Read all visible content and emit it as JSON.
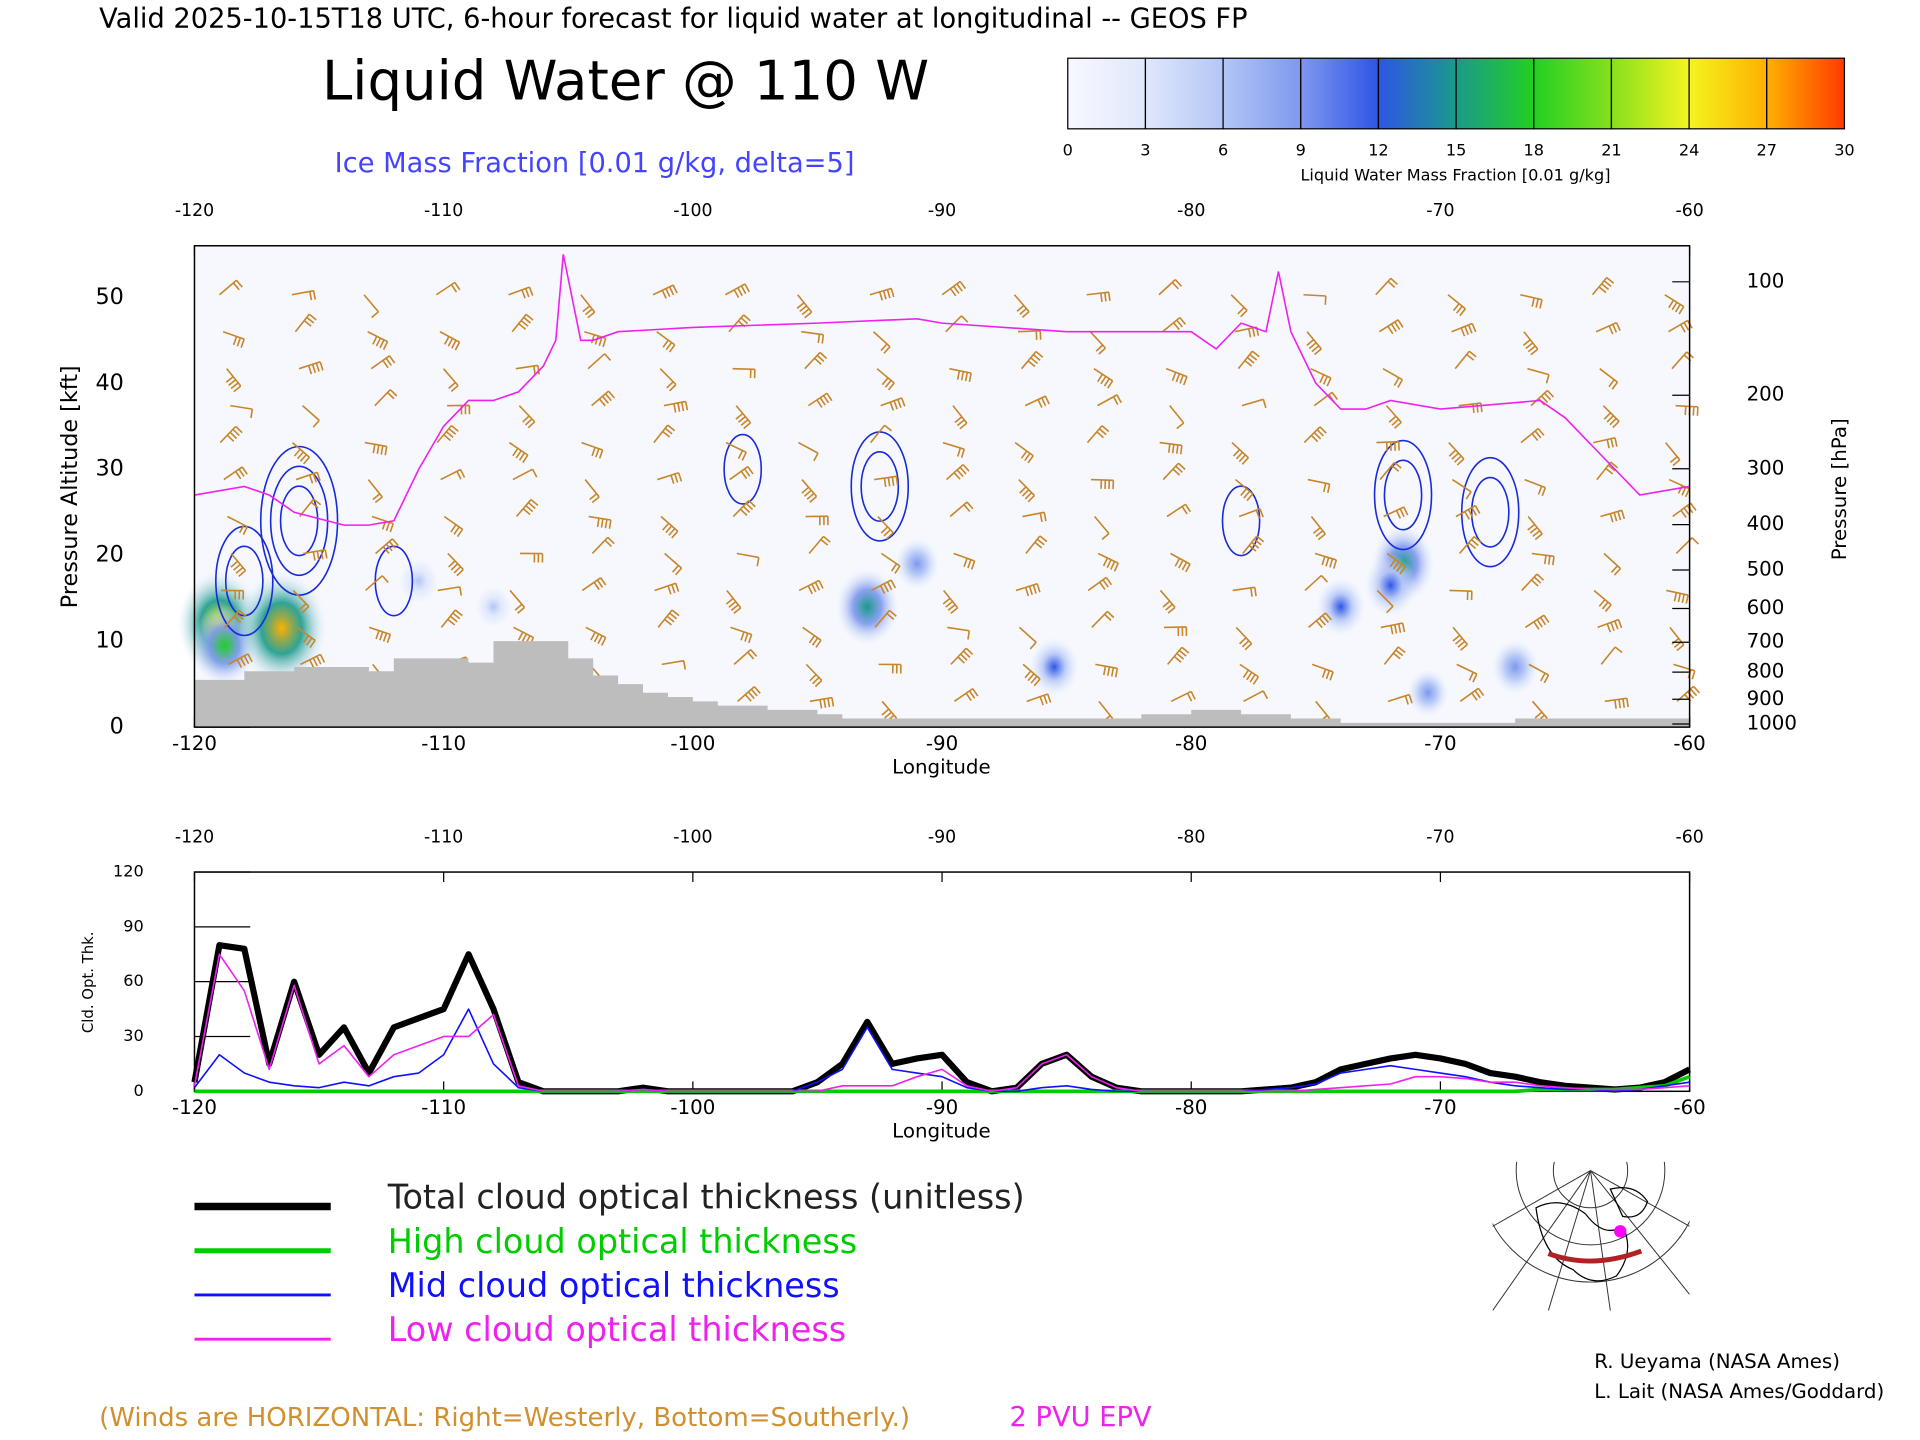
{
  "header": {
    "valid": "Valid 2025-10-15T18 UTC, 6-hour forecast for liquid water at longitudinal -- GEOS FP",
    "title": "Liquid Water @ 110 W",
    "subtitle": "Ice Mass Fraction [0.01 g/kg, delta=5]"
  },
  "colorbar": {
    "ticks": [
      0,
      3,
      6,
      9,
      12,
      15,
      18,
      21,
      24,
      27,
      30
    ],
    "label": "Liquid Water Mass Fraction [0.01 g/kg]",
    "colors": [
      "#f8f9ff",
      "#dfe7fb",
      "#b3c6f6",
      "#7e98ee",
      "#2e55e6",
      "#1a9a8a",
      "#22d022",
      "#86e01e",
      "#f4f420",
      "#ffb000",
      "#ff3a00"
    ]
  },
  "chart_data": [
    {
      "type": "cross-section",
      "xlabel": "Longitude",
      "ylabel": "Pressure Altitude [kft]",
      "y2label": "Pressure [hPa]",
      "xlim": [
        -120,
        -60
      ],
      "xticks": [
        -120,
        -110,
        -100,
        -90,
        -80,
        -70,
        -60
      ],
      "ylim": [
        0,
        56
      ],
      "yticks": [
        0,
        10,
        20,
        30,
        40,
        50
      ],
      "y2ticks": [
        100,
        200,
        300,
        400,
        500,
        600,
        700,
        800,
        900,
        1000
      ],
      "liquid_water": {
        "x": [
          -119,
          -118.8,
          -116.5,
          -93,
          -71.5,
          -72,
          -74,
          -85.5,
          -91,
          -67,
          -70.5,
          -111,
          -108
        ],
        "y": [
          12,
          9.5,
          11.5,
          14,
          19,
          16.5,
          14,
          7,
          19,
          7,
          4,
          17,
          14
        ],
        "values": [
          22,
          15,
          24,
          14,
          14,
          10,
          9,
          9,
          7,
          8,
          6,
          5,
          4
        ]
      },
      "ice_mass": {
        "x": [
          -115.8,
          -118,
          -112,
          -98,
          -92.5,
          -71.5,
          -68,
          -78
        ],
        "y": [
          24,
          17,
          17,
          30,
          28,
          27,
          25,
          24
        ],
        "values": [
          15,
          10,
          5,
          5,
          10,
          10,
          10,
          5
        ],
        "color": "#1a2bd8"
      },
      "epv": {
        "name": "2 PVU EPV",
        "color": "#ee22ee",
        "x": [
          -120,
          -118,
          -117,
          -116,
          -114,
          -113,
          -112,
          -111,
          -110,
          -109,
          -108,
          -107,
          -106,
          -105.5,
          -105.2,
          -104.5,
          -104,
          -103,
          -100,
          -95,
          -91,
          -90,
          -85,
          -80,
          -79,
          -78,
          -77,
          -76.5,
          -76,
          -75,
          -74,
          -73,
          -72,
          -70,
          -66,
          -65,
          -63,
          -62,
          -60
        ],
        "values": [
          27,
          28,
          27,
          25,
          23.5,
          23.5,
          24,
          30,
          35,
          38,
          38,
          39,
          42,
          45,
          55,
          45,
          45,
          46,
          46.5,
          47,
          47.5,
          47,
          46,
          46,
          44,
          47,
          46,
          53,
          46,
          40,
          37,
          37,
          38,
          37,
          38,
          36,
          30,
          27,
          28
        ]
      },
      "terrain": {
        "color": "#bdbdbd",
        "x": [
          -120,
          -118,
          -116,
          -113,
          -112,
          -109,
          -108,
          -106,
          -105,
          -104,
          -103,
          -102,
          -101,
          -100,
          -99,
          -97,
          -95,
          -94,
          -90,
          -82,
          -80,
          -78,
          -76,
          -74,
          -71,
          -67,
          -60
        ],
        "values": [
          5.5,
          6.5,
          7,
          6.5,
          8,
          7.5,
          10,
          10,
          8,
          6,
          5,
          4,
          3.5,
          3,
          2.5,
          2,
          1.5,
          1,
          1,
          1.5,
          2,
          1.5,
          1,
          0.5,
          0.5,
          1,
          1
        ]
      },
      "wind_note": "(Winds are HORIZONTAL: Right=Westerly, Bottom=Southerly.)",
      "wind_color": "#c8862a"
    },
    {
      "type": "line",
      "xlabel": "Longitude",
      "ylabel": "Cld. Opt. Thk.",
      "xlim": [
        -120,
        -60
      ],
      "xticks": [
        -120,
        -110,
        -100,
        -90,
        -80,
        -70,
        -60
      ],
      "ylim": [
        0,
        120
      ],
      "yticks": [
        0,
        30,
        60,
        90,
        120
      ],
      "x": [
        -120,
        -119,
        -118,
        -117,
        -116,
        -115,
        -114,
        -113,
        -112,
        -111,
        -110,
        -109,
        -108,
        -107,
        -106,
        -105,
        -104,
        -103,
        -102,
        -101,
        -100,
        -99,
        -98,
        -97,
        -96,
        -95,
        -94,
        -93,
        -92,
        -91,
        -90,
        -89,
        -88,
        -87,
        -86,
        -85,
        -84,
        -83,
        -82,
        -81,
        -80,
        -79,
        -78,
        -77,
        -76,
        -75,
        -74,
        -73,
        -72,
        -71,
        -70,
        -69,
        -68,
        -67,
        -66,
        -65,
        -64,
        -63,
        -62,
        -61,
        -60
      ],
      "series": [
        {
          "name": "Total cloud optical thickness (unitless)",
          "color": "#000000",
          "width": 5,
          "values": [
            5,
            80,
            78,
            15,
            60,
            20,
            35,
            10,
            35,
            40,
            45,
            75,
            45,
            5,
            0,
            0,
            0,
            0,
            2,
            0,
            0,
            0,
            0,
            0,
            0,
            5,
            15,
            38,
            15,
            18,
            20,
            5,
            0,
            2,
            15,
            20,
            8,
            2,
            0,
            0,
            0,
            0,
            0,
            1,
            2,
            5,
            12,
            15,
            18,
            20,
            18,
            15,
            10,
            8,
            5,
            3,
            2,
            1,
            2,
            5,
            12
          ]
        },
        {
          "name": "High cloud optical thickness",
          "color": "#00cc00",
          "width": 3,
          "values": [
            0,
            0,
            0,
            0,
            0,
            0,
            0,
            0,
            0,
            0,
            0,
            0,
            0,
            0,
            0,
            0,
            0,
            0,
            0,
            0,
            0,
            0,
            0,
            0,
            0,
            0,
            0,
            0,
            0,
            0,
            0,
            0,
            0,
            0,
            0,
            0,
            0,
            0,
            0,
            0,
            0,
            0,
            0,
            0,
            0,
            0,
            0,
            0,
            0,
            0,
            0,
            0,
            0,
            0,
            1,
            1,
            1,
            1,
            2,
            3,
            8
          ]
        },
        {
          "name": "Mid cloud optical thickness",
          "color": "#1010ff",
          "width": 1.3,
          "values": [
            2,
            20,
            10,
            5,
            3,
            2,
            5,
            3,
            8,
            10,
            20,
            45,
            15,
            2,
            0,
            0,
            0,
            0,
            1,
            0,
            0,
            0,
            0,
            0,
            0,
            5,
            12,
            35,
            12,
            10,
            8,
            2,
            0,
            0,
            2,
            3,
            1,
            0,
            0,
            0,
            0,
            0,
            0,
            1,
            2,
            4,
            10,
            12,
            14,
            12,
            10,
            8,
            5,
            3,
            2,
            1,
            1,
            0,
            1,
            3,
            5
          ]
        },
        {
          "name": "Low cloud optical thickness",
          "color": "#ee22ee",
          "width": 1.3,
          "values": [
            3,
            75,
            55,
            12,
            58,
            15,
            25,
            8,
            20,
            25,
            30,
            30,
            42,
            3,
            0,
            0,
            0,
            0,
            1,
            0,
            0,
            0,
            0,
            0,
            0,
            0,
            3,
            3,
            3,
            8,
            12,
            3,
            0,
            2,
            15,
            20,
            8,
            2,
            0,
            0,
            0,
            0,
            0,
            0,
            0,
            1,
            2,
            3,
            4,
            8,
            8,
            7,
            5,
            5,
            3,
            2,
            1,
            1,
            1,
            2,
            3
          ]
        }
      ]
    }
  ],
  "credits": [
    "R. Ueyama (NASA Ames)",
    "L. Lait (NASA Ames/Goddard)"
  ]
}
